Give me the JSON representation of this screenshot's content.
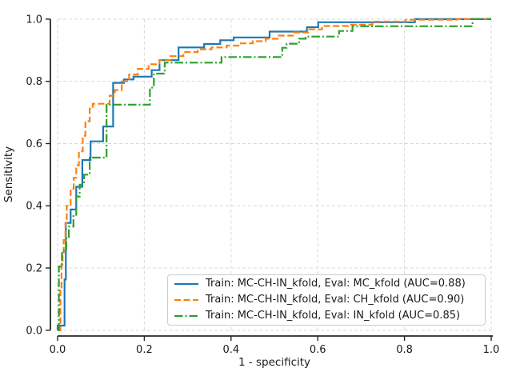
{
  "chart_data": {
    "type": "line",
    "curve_style": "roc-step",
    "title": "",
    "xlabel": "1 - specificity",
    "ylabel": "Sensitivity",
    "xlim": [
      0.0,
      1.0
    ],
    "ylim": [
      0.0,
      1.0
    ],
    "xtick_labels": [
      "0.0",
      "0.2",
      "0.4",
      "0.6",
      "0.8",
      "1.0"
    ],
    "ytick_labels": [
      "0.0",
      "0.2",
      "0.4",
      "0.6",
      "0.8",
      "1.0"
    ],
    "xticks": [
      0.0,
      0.2,
      0.4,
      0.6,
      0.8,
      1.0
    ],
    "yticks": [
      0.0,
      0.2,
      0.4,
      0.6,
      0.8,
      1.0
    ],
    "grid": true,
    "grid_style": "dashed",
    "grid_color": "#d9d9d9",
    "spine_color": "#262626",
    "text_color": "#1a1a1a",
    "legend_position": "lower right",
    "series": [
      {
        "name": "Train: MC-CH-IN_kfold, Eval: MC_kfold (AUC=0.88)",
        "train": "MC-CH-IN_kfold",
        "eval": "MC_kfold",
        "auc": 0.88,
        "color": "#1f77b4",
        "line_style": "solid",
        "anchors": [
          [
            0,
            0.015
          ],
          [
            0.016,
            0.163
          ],
          [
            0.019,
            0.345
          ],
          [
            0.03,
            0.388
          ],
          [
            0.043,
            0.461
          ],
          [
            0.057,
            0.547
          ],
          [
            0.076,
            0.607
          ],
          [
            0.105,
            0.655
          ],
          [
            0.128,
            0.795
          ],
          [
            0.153,
            0.806
          ],
          [
            0.175,
            0.815
          ],
          [
            0.217,
            0.836
          ],
          [
            0.235,
            0.868
          ],
          [
            0.279,
            0.909
          ],
          [
            0.338,
            0.92
          ],
          [
            0.375,
            0.932
          ],
          [
            0.406,
            0.941
          ],
          [
            0.489,
            0.96
          ],
          [
            0.575,
            0.974
          ],
          [
            0.601,
            0.99
          ],
          [
            0.824,
            1.0
          ]
        ]
      },
      {
        "name": "Train: MC-CH-IN_kfold, Eval: CH_kfold (AUC=0.90)",
        "train": "MC-CH-IN_kfold",
        "eval": "CH_kfold",
        "auc": 0.9,
        "color": "#ff7f0e",
        "line_style": "dashed",
        "anchors": [
          [
            0.0065,
            0.13
          ],
          [
            0.009,
            0.21
          ],
          [
            0.0115,
            0.245
          ],
          [
            0.014,
            0.29
          ],
          [
            0.018,
            0.345
          ],
          [
            0.021,
            0.4
          ],
          [
            0.03,
            0.455
          ],
          [
            0.037,
            0.49
          ],
          [
            0.043,
            0.53
          ],
          [
            0.049,
            0.575
          ],
          [
            0.058,
            0.625
          ],
          [
            0.064,
            0.672
          ],
          [
            0.074,
            0.712
          ],
          [
            0.081,
            0.728
          ],
          [
            0.12,
            0.754
          ],
          [
            0.132,
            0.772
          ],
          [
            0.148,
            0.8
          ],
          [
            0.165,
            0.822
          ],
          [
            0.185,
            0.84
          ],
          [
            0.21,
            0.855
          ],
          [
            0.235,
            0.868
          ],
          [
            0.26,
            0.881
          ],
          [
            0.29,
            0.894
          ],
          [
            0.323,
            0.903
          ],
          [
            0.355,
            0.909
          ],
          [
            0.39,
            0.915
          ],
          [
            0.42,
            0.922
          ],
          [
            0.45,
            0.929
          ],
          [
            0.48,
            0.937
          ],
          [
            0.51,
            0.947
          ],
          [
            0.545,
            0.957
          ],
          [
            0.58,
            0.967
          ],
          [
            0.61,
            0.978
          ],
          [
            0.67,
            0.982
          ],
          [
            0.726,
            0.992
          ],
          [
            0.803,
            0.998
          ],
          [
            0.92,
            1.0
          ]
        ]
      },
      {
        "name": "Train: MC-CH-IN_kfold, Eval: IN_kfold (AUC=0.85)",
        "train": "MC-CH-IN_kfold",
        "eval": "IN_kfold",
        "auc": 0.85,
        "color": "#2ca02c",
        "line_style": "dashdot",
        "anchors": [
          [
            0.003,
            0.205
          ],
          [
            0.01,
            0.255
          ],
          [
            0.02,
            0.3
          ],
          [
            0.026,
            0.333
          ],
          [
            0.0365,
            0.367
          ],
          [
            0.043,
            0.43
          ],
          [
            0.051,
            0.468
          ],
          [
            0.061,
            0.5
          ],
          [
            0.074,
            0.555
          ],
          [
            0.113,
            0.725
          ],
          [
            0.213,
            0.78
          ],
          [
            0.222,
            0.825
          ],
          [
            0.247,
            0.86
          ],
          [
            0.378,
            0.878
          ],
          [
            0.518,
            0.908
          ],
          [
            0.528,
            0.921
          ],
          [
            0.557,
            0.937
          ],
          [
            0.572,
            0.944
          ],
          [
            0.649,
            0.962
          ],
          [
            0.68,
            0.977
          ],
          [
            0.957,
            1.0
          ]
        ]
      }
    ]
  }
}
